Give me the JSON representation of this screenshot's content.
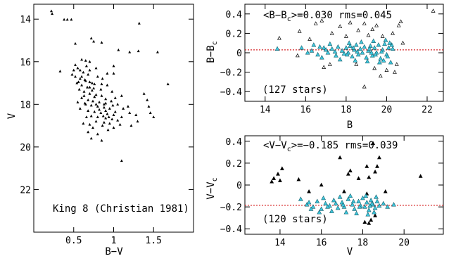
{
  "chart_data": [
    {
      "type": "scatter",
      "panel": "cmd",
      "annotation": "King 8 (Christian 1981)",
      "xlabel": "B−V",
      "ylabel": "V",
      "xlim": [
        0,
        2
      ],
      "ylim": [
        24,
        13.3
      ],
      "xticks": [
        0.5,
        1,
        1.5
      ],
      "xtick_labels": [
        "0.5",
        "1",
        "1.5"
      ],
      "yticks": [
        14,
        16,
        18,
        20,
        22
      ],
      "ytick_labels": [
        "14",
        "16",
        "18",
        "20",
        "22"
      ],
      "marker_color": "#000000",
      "points": [
        [
          0.22,
          13.62
        ],
        [
          0.23,
          13.75
        ],
        [
          0.38,
          14.02
        ],
        [
          0.42,
          14.02
        ],
        [
          0.47,
          14.02
        ],
        [
          0.72,
          14.9
        ],
        [
          0.75,
          15.05
        ],
        [
          0.52,
          15.15
        ],
        [
          1.32,
          14.2
        ],
        [
          1.06,
          15.45
        ],
        [
          1.2,
          15.55
        ],
        [
          1.31,
          15.5
        ],
        [
          1.55,
          15.55
        ],
        [
          0.85,
          15.1
        ],
        [
          0.6,
          15.9
        ],
        [
          0.65,
          15.95
        ],
        [
          0.52,
          16.15
        ],
        [
          0.55,
          16.3
        ],
        [
          0.58,
          16.4
        ],
        [
          0.62,
          16.5
        ],
        [
          0.48,
          16.6
        ],
        [
          0.52,
          16.7
        ],
        [
          0.58,
          16.8
        ],
        [
          0.65,
          16.9
        ],
        [
          0.7,
          16.95
        ],
        [
          0.54,
          17.0
        ],
        [
          0.6,
          17.1
        ],
        [
          0.67,
          17.2
        ],
        [
          0.75,
          17.25
        ],
        [
          0.57,
          17.3
        ],
        [
          0.63,
          17.4
        ],
        [
          0.7,
          17.5
        ],
        [
          0.78,
          17.55
        ],
        [
          0.85,
          17.6
        ],
        [
          0.6,
          17.7
        ],
        [
          0.68,
          17.8
        ],
        [
          0.74,
          17.85
        ],
        [
          0.82,
          17.9
        ],
        [
          0.9,
          17.95
        ],
        [
          0.65,
          18.0
        ],
        [
          0.72,
          18.05
        ],
        [
          0.8,
          18.1
        ],
        [
          0.88,
          18.15
        ],
        [
          0.95,
          18.2
        ],
        [
          0.68,
          18.3
        ],
        [
          0.76,
          18.35
        ],
        [
          0.84,
          18.4
        ],
        [
          0.92,
          18.45
        ],
        [
          1.0,
          18.5
        ],
        [
          0.72,
          18.55
        ],
        [
          0.8,
          18.6
        ],
        [
          0.9,
          18.65
        ],
        [
          0.98,
          18.7
        ],
        [
          1.05,
          18.75
        ],
        [
          0.78,
          18.8
        ],
        [
          0.88,
          18.85
        ],
        [
          0.95,
          18.9
        ],
        [
          0.7,
          18.95
        ],
        [
          0.63,
          17.6
        ],
        [
          0.73,
          17.0
        ],
        [
          0.8,
          16.7
        ],
        [
          0.7,
          16.4
        ],
        [
          0.5,
          16.4
        ],
        [
          0.33,
          16.45
        ],
        [
          0.66,
          16.2
        ],
        [
          0.7,
          16.0
        ],
        [
          0.78,
          16.3
        ],
        [
          0.86,
          16.8
        ],
        [
          0.92,
          17.1
        ],
        [
          0.98,
          17.4
        ],
        [
          1.02,
          17.7
        ],
        [
          1.05,
          18.0
        ],
        [
          1.12,
          18.2
        ],
        [
          1.2,
          18.4
        ],
        [
          1.28,
          18.5
        ],
        [
          0.84,
          17.3
        ],
        [
          0.9,
          17.75
        ],
        [
          0.76,
          17.65
        ],
        [
          0.66,
          18.6
        ],
        [
          0.58,
          18.2
        ],
        [
          0.62,
          18.9
        ],
        [
          0.74,
          19.1
        ],
        [
          0.86,
          19.0
        ],
        [
          0.93,
          19.2
        ],
        [
          0.68,
          19.3
        ],
        [
          0.72,
          19.6
        ],
        [
          0.85,
          19.7
        ],
        [
          1.0,
          19.1
        ],
        [
          1.08,
          18.95
        ],
        [
          1.1,
          18.6
        ],
        [
          1.18,
          18.1
        ],
        [
          1.0,
          16.2
        ],
        [
          1.0,
          16.55
        ],
        [
          1.38,
          17.5
        ],
        [
          1.42,
          17.8
        ],
        [
          1.44,
          18.1
        ],
        [
          1.46,
          18.4
        ],
        [
          1.5,
          18.6
        ],
        [
          1.3,
          18.8
        ],
        [
          1.22,
          19.0
        ],
        [
          1.68,
          17.05
        ],
        [
          1.1,
          20.65
        ],
        [
          0.55,
          17.9
        ],
        [
          0.64,
          17.95
        ],
        [
          0.73,
          17.35
        ],
        [
          0.82,
          18.25
        ],
        [
          0.87,
          18.55
        ],
        [
          0.97,
          17.85
        ],
        [
          0.92,
          16.55
        ],
        [
          0.6,
          16.7
        ],
        [
          0.68,
          16.6
        ],
        [
          0.76,
          17.05
        ],
        [
          0.88,
          18.0
        ],
        [
          0.94,
          18.6
        ],
        [
          1.02,
          18.35
        ],
        [
          0.8,
          19.4
        ],
        [
          0.9,
          18.3
        ],
        [
          0.78,
          18.0
        ],
        [
          0.7,
          17.2
        ],
        [
          0.56,
          16.95
        ],
        [
          0.64,
          16.85
        ],
        [
          1.1,
          17.6
        ],
        [
          0.99,
          18.05
        ],
        [
          0.85,
          17.05
        ]
      ]
    },
    {
      "type": "scatter",
      "panel": "residual-b",
      "annotation": "<B−B_c>=0.030  rms=0.045",
      "annotation_parts": [
        "<B−B",
        "c",
        ">=0.030  rms=0.045"
      ],
      "count_label": "(127 stars)",
      "xlabel": "B",
      "ylabel": "B−B_c",
      "ylabel_parts": [
        "B−B",
        "c"
      ],
      "xlim": [
        13,
        22.8
      ],
      "ylim": [
        -0.5,
        0.5
      ],
      "xticks": [
        14,
        16,
        18,
        20,
        22
      ],
      "xtick_labels": [
        "14",
        "16",
        "18",
        "20",
        "22"
      ],
      "yticks": [
        -0.4,
        -0.2,
        0,
        0.2,
        0.4
      ],
      "ytick_labels": [
        "−0.4",
        "−0.2",
        "0",
        "0.2",
        "0.4"
      ],
      "reference_line": 0.03,
      "reference_color": "#d62728",
      "used_color": "#3ec6dc",
      "used_points": [
        [
          14.6,
          0.04
        ],
        [
          15.8,
          0.05
        ],
        [
          16.3,
          0.02
        ],
        [
          16.6,
          -0.02
        ],
        [
          16.9,
          0.05
        ],
        [
          17.1,
          0.0
        ],
        [
          17.3,
          0.04
        ],
        [
          17.5,
          -0.03
        ],
        [
          17.6,
          0.06
        ],
        [
          17.8,
          0.02
        ],
        [
          17.9,
          -0.01
        ],
        [
          18.0,
          0.05
        ],
        [
          18.1,
          0.0
        ],
        [
          18.2,
          0.07
        ],
        [
          18.3,
          -0.04
        ],
        [
          18.4,
          0.03
        ],
        [
          18.5,
          0.08
        ],
        [
          18.6,
          -0.02
        ],
        [
          18.7,
          0.04
        ],
        [
          18.8,
          0.0
        ],
        [
          18.9,
          0.06
        ],
        [
          19.0,
          -0.05
        ],
        [
          19.1,
          0.02
        ],
        [
          19.2,
          0.07
        ],
        [
          19.3,
          -0.03
        ],
        [
          19.4,
          0.05
        ],
        [
          19.5,
          0.0
        ],
        [
          19.6,
          0.08
        ],
        [
          19.7,
          -0.06
        ],
        [
          19.8,
          0.03
        ],
        [
          19.9,
          0.09
        ],
        [
          20.0,
          -0.02
        ],
        [
          20.1,
          0.05
        ],
        [
          20.2,
          -0.1
        ],
        [
          20.3,
          0.04
        ],
        [
          16.4,
          0.08
        ],
        [
          16.8,
          -0.05
        ],
        [
          17.2,
          0.09
        ],
        [
          17.7,
          -0.07
        ],
        [
          18.15,
          0.1
        ],
        [
          18.45,
          -0.08
        ],
        [
          18.75,
          0.11
        ],
        [
          19.05,
          -0.09
        ],
        [
          19.35,
          0.12
        ],
        [
          19.65,
          -0.1
        ],
        [
          19.95,
          0.13
        ],
        [
          20.25,
          0.08
        ],
        [
          16.1,
          0.0
        ],
        [
          17.0,
          0.03
        ],
        [
          18.55,
          0.01
        ],
        [
          19.25,
          0.0
        ],
        [
          19.75,
          0.01
        ],
        [
          20.05,
          -0.04
        ],
        [
          18.05,
          -0.02
        ],
        [
          17.45,
          0.01
        ],
        [
          16.7,
          0.06
        ],
        [
          19.15,
          0.04
        ],
        [
          19.45,
          -0.02
        ],
        [
          19.85,
          -0.08
        ],
        [
          20.15,
          0.1
        ],
        [
          18.35,
          0.05
        ]
      ],
      "rejected_points": [
        [
          14.7,
          0.15
        ],
        [
          15.7,
          0.22
        ],
        [
          15.6,
          -0.03
        ],
        [
          16.5,
          0.3
        ],
        [
          16.2,
          0.14
        ],
        [
          16.8,
          0.33
        ],
        [
          17.3,
          0.2
        ],
        [
          17.7,
          0.27
        ],
        [
          18.0,
          0.17
        ],
        [
          18.2,
          0.31
        ],
        [
          18.6,
          0.23
        ],
        [
          18.9,
          0.3
        ],
        [
          19.1,
          0.18
        ],
        [
          19.5,
          0.28
        ],
        [
          19.8,
          0.17
        ],
        [
          20.3,
          0.2
        ],
        [
          20.6,
          0.28
        ],
        [
          20.5,
          -0.12
        ],
        [
          20.4,
          -0.2
        ],
        [
          20.0,
          -0.18
        ],
        [
          19.7,
          -0.24
        ],
        [
          19.4,
          -0.16
        ],
        [
          18.9,
          -0.35
        ],
        [
          18.5,
          -0.12
        ],
        [
          22.3,
          0.43
        ],
        [
          20.8,
          0.1
        ],
        [
          17.2,
          -0.12
        ],
        [
          16.9,
          -0.15
        ],
        [
          20.7,
          0.32
        ],
        [
          19.3,
          0.24
        ]
      ]
    },
    {
      "type": "scatter",
      "panel": "residual-v",
      "annotation": "<V−V_c>=−0.185  rms=0.039",
      "annotation_parts": [
        "<V−V",
        "c",
        ">=−0.185  rms=0.039"
      ],
      "count_label": "(120 stars)",
      "xlabel": "V",
      "ylabel": "V−V_c",
      "ylabel_parts": [
        "V−V",
        "c"
      ],
      "xlim": [
        12.3,
        21.9
      ],
      "ylim": [
        -0.45,
        0.45
      ],
      "xticks": [
        14,
        16,
        18,
        20
      ],
      "xtick_labels": [
        "14",
        "16",
        "18",
        "20"
      ],
      "yticks": [
        -0.4,
        -0.2,
        0,
        0.2,
        0.4
      ],
      "ytick_labels": [
        "−0.4",
        "−0.2",
        "0",
        "0.2",
        "0.4"
      ],
      "reference_line": -0.185,
      "reference_color": "#d62728",
      "used_color": "#3ec6dc",
      "used_points": [
        [
          15.0,
          -0.13
        ],
        [
          15.3,
          -0.18
        ],
        [
          15.6,
          -0.2
        ],
        [
          15.8,
          -0.15
        ],
        [
          16.0,
          -0.22
        ],
        [
          16.2,
          -0.17
        ],
        [
          16.4,
          -0.19
        ],
        [
          16.6,
          -0.14
        ],
        [
          16.8,
          -0.21
        ],
        [
          17.0,
          -0.16
        ],
        [
          17.1,
          -0.2
        ],
        [
          17.3,
          -0.13
        ],
        [
          17.5,
          -0.18
        ],
        [
          17.6,
          -0.22
        ],
        [
          17.8,
          -0.15
        ],
        [
          17.9,
          -0.19
        ],
        [
          18.0,
          -0.12
        ],
        [
          18.1,
          -0.2
        ],
        [
          18.2,
          -0.16
        ],
        [
          18.3,
          -0.23
        ],
        [
          18.4,
          -0.14
        ],
        [
          18.5,
          -0.18
        ],
        [
          18.6,
          -0.21
        ],
        [
          18.7,
          -0.15
        ],
        [
          18.8,
          -0.19
        ],
        [
          19.0,
          -0.17
        ],
        [
          19.2,
          -0.2
        ],
        [
          19.5,
          -0.18
        ],
        [
          15.9,
          -0.25
        ],
        [
          16.5,
          -0.24
        ],
        [
          17.2,
          -0.25
        ],
        [
          17.7,
          -0.26
        ],
        [
          18.25,
          -0.27
        ],
        [
          18.55,
          -0.25
        ],
        [
          16.1,
          -0.12
        ],
        [
          16.9,
          -0.11
        ],
        [
          17.4,
          -0.1
        ],
        [
          18.15,
          -0.1
        ],
        [
          18.65,
          -0.11
        ],
        [
          15.5,
          -0.22
        ],
        [
          16.3,
          -0.2
        ],
        [
          17.05,
          -0.18
        ],
        [
          17.85,
          -0.2
        ],
        [
          18.45,
          -0.17
        ],
        [
          15.4,
          -0.16
        ],
        [
          16.7,
          -0.17
        ],
        [
          17.55,
          -0.15
        ],
        [
          18.35,
          -0.19
        ]
      ],
      "rejected_points": [
        [
          13.7,
          0.06
        ],
        [
          13.9,
          0.1
        ],
        [
          13.6,
          0.03
        ],
        [
          14.1,
          0.15
        ],
        [
          14.0,
          0.04
        ],
        [
          14.9,
          0.05
        ],
        [
          15.4,
          -0.06
        ],
        [
          16.9,
          0.25
        ],
        [
          17.4,
          0.13
        ],
        [
          17.8,
          0.06
        ],
        [
          18.3,
          0.07
        ],
        [
          18.6,
          0.12
        ],
        [
          18.7,
          0.17
        ],
        [
          18.8,
          0.25
        ],
        [
          18.2,
          0.17
        ],
        [
          17.3,
          0.1
        ],
        [
          20.8,
          0.08
        ],
        [
          17.1,
          -0.06
        ],
        [
          18.2,
          -0.08
        ],
        [
          18.6,
          -0.28
        ],
        [
          18.4,
          -0.32
        ],
        [
          18.3,
          -0.35
        ],
        [
          18.1,
          -0.34
        ],
        [
          19.1,
          -0.06
        ],
        [
          18.5,
          0.38
        ],
        [
          16.0,
          0.0
        ]
      ]
    }
  ]
}
